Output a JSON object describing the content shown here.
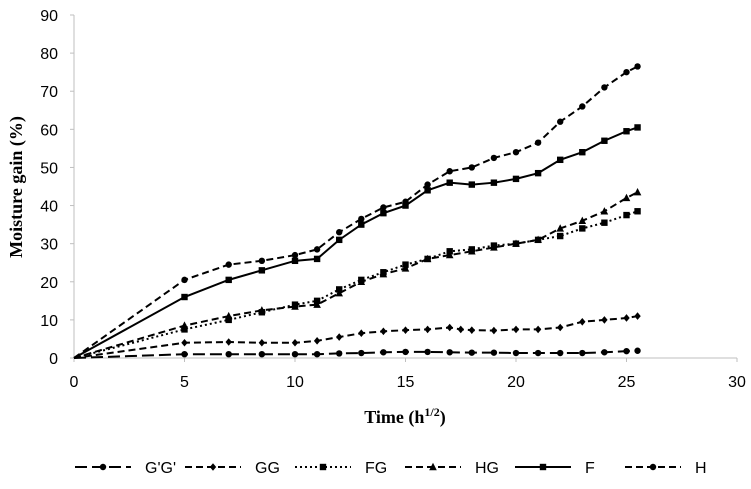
{
  "chart_data": {
    "type": "line",
    "title": "",
    "xlabel": "Time (h",
    "xlabel_sup": "1/2",
    "xlabel_close": ")",
    "ylabel": "Moisture gain (%)",
    "xlim": [
      0,
      30
    ],
    "ylim": [
      0,
      90
    ],
    "xticks": [
      0,
      5,
      10,
      15,
      20,
      25,
      30
    ],
    "yticks": [
      0,
      10,
      20,
      30,
      40,
      50,
      60,
      70,
      80,
      90
    ],
    "grid": false,
    "legend_position": "bottom",
    "line_color": "#000000",
    "series": [
      {
        "name": "G'G'",
        "dash": "long-dash",
        "marker": "circle",
        "x": [
          0,
          5,
          7,
          8.5,
          10,
          11,
          12,
          13,
          14,
          15,
          16,
          17,
          18,
          19,
          20,
          21,
          22,
          23,
          24,
          25,
          25.5
        ],
        "y": [
          0,
          1,
          1,
          1,
          1,
          1,
          1.2,
          1.3,
          1.5,
          1.6,
          1.6,
          1.5,
          1.4,
          1.4,
          1.3,
          1.3,
          1.3,
          1.3,
          1.5,
          1.8,
          1.9
        ]
      },
      {
        "name": "GG",
        "dash": "dash",
        "marker": "diamond",
        "x": [
          0,
          5,
          7,
          8.5,
          10,
          11,
          12,
          13,
          14,
          15,
          16,
          17,
          17.5,
          18,
          19,
          20,
          21,
          22,
          23,
          24,
          25,
          25.5
        ],
        "y": [
          0,
          4,
          4.2,
          4,
          4,
          4.5,
          5.5,
          6.5,
          7,
          7.3,
          7.5,
          8,
          7.5,
          7.3,
          7.2,
          7.5,
          7.5,
          8,
          9.5,
          10,
          10.5,
          11
        ]
      },
      {
        "name": "FG",
        "dash": "dot",
        "marker": "square",
        "x": [
          0,
          5,
          7,
          8.5,
          10,
          11,
          12,
          13,
          14,
          15,
          16,
          17,
          18,
          19,
          20,
          21,
          22,
          23,
          24,
          25,
          25.5
        ],
        "y": [
          0,
          7.5,
          10,
          12,
          14,
          15,
          18,
          20.5,
          22.5,
          24.5,
          26,
          28,
          28.5,
          29.5,
          30,
          31,
          32,
          34,
          35.5,
          37.5,
          38.5
        ]
      },
      {
        "name": "HG",
        "dash": "dash",
        "marker": "triangle",
        "x": [
          0,
          5,
          7,
          8.5,
          10,
          11,
          12,
          13,
          14,
          15,
          16,
          17,
          18,
          19,
          20,
          21,
          22,
          23,
          24,
          25,
          25.5
        ],
        "y": [
          0,
          8.5,
          11,
          12.5,
          13.5,
          14,
          17,
          20,
          22,
          23.5,
          26,
          27,
          28,
          29,
          30,
          31,
          34,
          36,
          38.5,
          42,
          43.5
        ]
      },
      {
        "name": "F",
        "dash": "solid",
        "marker": "square",
        "x": [
          0,
          5,
          7,
          8.5,
          10,
          11,
          12,
          13,
          14,
          15,
          16,
          17,
          18,
          19,
          20,
          21,
          22,
          23,
          24,
          25,
          25.5
        ],
        "y": [
          0,
          16,
          20.5,
          23,
          25.5,
          26,
          31,
          35,
          38,
          40,
          44,
          46,
          45.5,
          46,
          47,
          48.5,
          52,
          54,
          57,
          59.5,
          60.5
        ]
      },
      {
        "name": "H",
        "dash": "dash",
        "marker": "circle",
        "x": [
          0,
          5,
          7,
          8.5,
          10,
          11,
          12,
          13,
          14,
          15,
          16,
          17,
          18,
          19,
          20,
          21,
          22,
          23,
          24,
          25,
          25.5
        ],
        "y": [
          0,
          20.5,
          24.5,
          25.5,
          27,
          28.5,
          33,
          36.5,
          39.5,
          41,
          45.5,
          49,
          50,
          52.5,
          54,
          56.5,
          62,
          66,
          71,
          75,
          76.5
        ]
      }
    ]
  }
}
